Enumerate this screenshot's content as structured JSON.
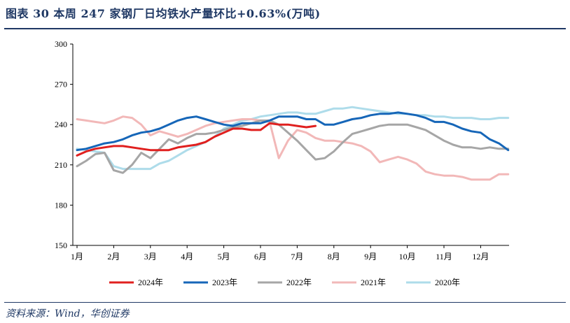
{
  "title": "图表 30  本周 247 家钢厂日均铁水产量环比+0.63%(万吨)",
  "source": "资料来源：Wind，华创证券",
  "chart_data": {
    "type": "line",
    "y_ticks": [
      "300",
      "270",
      "240",
      "210",
      "180",
      "150"
    ],
    "ylim": [
      150,
      300
    ],
    "x_ticks": [
      "1月",
      "2月",
      "3月",
      "4月",
      "5月",
      "6月",
      "7月",
      "8月",
      "9月",
      "10月",
      "11月",
      "12月"
    ],
    "grid": false,
    "legend_position": "bottom",
    "series": [
      {
        "name": "2024年",
        "color": "#e0201f",
        "x": [
          0.0,
          0.25,
          0.5,
          0.75,
          1.0,
          1.25,
          1.5,
          1.75,
          2.0,
          2.25,
          2.5,
          2.75,
          3.0,
          3.25,
          3.5,
          3.75,
          4.0,
          4.25,
          4.5,
          4.75,
          5.0,
          5.25,
          5.5,
          5.75,
          6.0,
          6.25,
          6.5,
          6.75,
          7.0,
          7.25,
          7.5
        ],
        "values": [
          217,
          220,
          222,
          223,
          224,
          224,
          223,
          222,
          221,
          221,
          221,
          223,
          224,
          225,
          227,
          231,
          234,
          237,
          237,
          236,
          236,
          241,
          240,
          240,
          239,
          238,
          239,
          null,
          null,
          null,
          null
        ]
      },
      {
        "name": "2023年",
        "color": "#1666b8",
        "x": [
          0.0,
          0.25,
          0.5,
          0.75,
          1.0,
          1.25,
          1.5,
          1.75,
          2.0,
          2.25,
          2.5,
          2.75,
          3.0,
          3.25,
          3.5,
          3.75,
          4.0,
          4.25,
          4.5,
          4.75,
          5.0,
          5.25,
          5.5,
          5.75,
          6.0,
          6.25,
          6.5,
          6.75,
          7.0,
          7.25,
          7.5,
          7.75,
          8.0,
          8.25,
          8.5,
          8.75,
          9.0,
          9.25,
          9.5,
          9.75,
          10.0,
          10.25,
          10.5,
          10.75,
          11.0,
          11.25,
          11.5,
          11.75
        ],
        "values": [
          221,
          222,
          224,
          226,
          227,
          229,
          232,
          234,
          235,
          237,
          240,
          243,
          245,
          246,
          244,
          242,
          240,
          239,
          241,
          241,
          241,
          243,
          246,
          246,
          246,
          244,
          244,
          240,
          240,
          242,
          244,
          245,
          247,
          248,
          248,
          249,
          248,
          247,
          245,
          242,
          242,
          240,
          237,
          235,
          234,
          229,
          226,
          221
        ]
      },
      {
        "name": "2022年",
        "color": "#a6a6a6",
        "x": [
          0.0,
          0.25,
          0.5,
          0.75,
          1.0,
          1.25,
          1.5,
          1.75,
          2.0,
          2.25,
          2.5,
          2.75,
          3.0,
          3.25,
          3.5,
          3.75,
          4.0,
          4.25,
          4.5,
          4.75,
          5.0,
          5.25,
          5.5,
          5.75,
          6.0,
          6.25,
          6.5,
          6.75,
          7.0,
          7.25,
          7.5,
          7.75,
          8.0,
          8.25,
          8.5,
          8.75,
          9.0,
          9.25,
          9.5,
          9.75,
          10.0,
          10.25,
          10.5,
          10.75,
          11.0,
          11.25,
          11.5,
          11.75
        ],
        "values": [
          209,
          213,
          218,
          219,
          206,
          204,
          210,
          219,
          215,
          222,
          229,
          226,
          230,
          233,
          233,
          234,
          236,
          238,
          239,
          241,
          243,
          243,
          240,
          234,
          228,
          221,
          214,
          215,
          220,
          227,
          233,
          235,
          237,
          239,
          240,
          240,
          240,
          238,
          236,
          232,
          228,
          225,
          223,
          223,
          222,
          223,
          222,
          222
        ]
      },
      {
        "name": "2021年",
        "color": "#f2b8b8",
        "x": [
          0.0,
          0.25,
          0.5,
          0.75,
          1.0,
          1.25,
          1.5,
          1.75,
          2.0,
          2.25,
          2.5,
          2.75,
          3.0,
          3.25,
          3.5,
          3.75,
          4.0,
          4.25,
          4.5,
          4.75,
          5.0,
          5.25,
          5.5,
          5.75,
          6.0,
          6.25,
          6.5,
          6.75,
          7.0,
          7.25,
          7.5,
          7.75,
          8.0,
          8.25,
          8.5,
          8.75,
          9.0,
          9.25,
          9.5,
          9.75,
          10.0,
          10.25,
          10.5,
          10.75,
          11.0,
          11.25,
          11.5,
          11.75
        ],
        "values": [
          244,
          243,
          242,
          241,
          243,
          246,
          245,
          240,
          232,
          235,
          233,
          231,
          233,
          236,
          239,
          241,
          242,
          243,
          244,
          244,
          243,
          242,
          215,
          228,
          236,
          234,
          230,
          228,
          228,
          227,
          226,
          224,
          220,
          212,
          214,
          216,
          214,
          211,
          205,
          203,
          202,
          202,
          201,
          199,
          199,
          199,
          203,
          203
        ]
      },
      {
        "name": "2020年",
        "color": "#aedcea",
        "x": [
          0.0,
          0.25,
          0.5,
          0.75,
          1.0,
          1.25,
          1.5,
          1.75,
          2.0,
          2.25,
          2.5,
          2.75,
          3.0,
          3.25,
          3.5,
          3.75,
          4.0,
          4.25,
          4.5,
          4.75,
          5.0,
          5.25,
          5.5,
          5.75,
          6.0,
          6.25,
          6.5,
          6.75,
          7.0,
          7.25,
          7.5,
          7.75,
          8.0,
          8.25,
          8.5,
          8.75,
          9.0,
          9.25,
          9.5,
          9.75,
          10.0,
          10.25,
          10.5,
          10.75,
          11.0,
          11.25,
          11.5,
          11.75
        ],
        "values": [
          222,
          221,
          220,
          219,
          209,
          207,
          207,
          207,
          207,
          211,
          213,
          217,
          221,
          224,
          227,
          231,
          237,
          240,
          243,
          244,
          246,
          247,
          248,
          249,
          249,
          248,
          248,
          250,
          252,
          252,
          253,
          252,
          251,
          250,
          249,
          248,
          248,
          247,
          247,
          246,
          246,
          245,
          245,
          245,
          244,
          244,
          245,
          245
        ]
      }
    ]
  }
}
